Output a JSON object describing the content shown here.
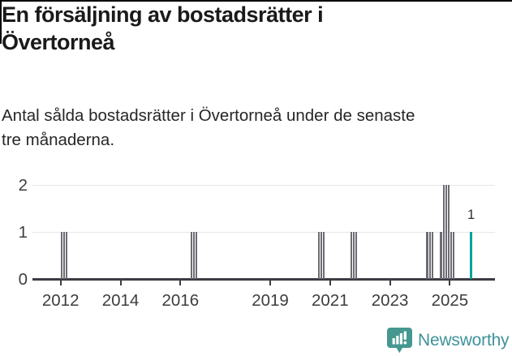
{
  "page": {
    "title": "En försäljning av bostadsrätter i Övertorneå",
    "title_lines": [
      "En försäljning av bostadsrätter i",
      "Övertorneå"
    ],
    "subtitle": "Antal sålda bostadsrätter i Övertorneå under de senaste tre månaderna.",
    "subtitle_lines": [
      "Antal sålda bostadsrätter i Övertorneå under de senaste",
      "tre månaderna."
    ]
  },
  "chart_data": {
    "type": "bar",
    "title": "En försäljning av bostadsrätter i Övertorneå",
    "subtitle": "Antal sålda bostadsrätter i Övertorneå under de senaste tre månaderna.",
    "xlabel": "",
    "ylabel": "",
    "ylim": [
      0,
      2
    ],
    "yticks": [
      0,
      1,
      2
    ],
    "xticks": [
      2012,
      2014,
      2016,
      2019,
      2021,
      2023,
      2025
    ],
    "grid": "horizontal",
    "legend_position": "none",
    "series_monthly": [
      {
        "year": 2012.03,
        "value": 1
      },
      {
        "year": 2012.113,
        "value": 1
      },
      {
        "year": 2012.197,
        "value": 1
      },
      {
        "year": 2016.37,
        "value": 1
      },
      {
        "year": 2016.453,
        "value": 1
      },
      {
        "year": 2016.537,
        "value": 1
      },
      {
        "year": 2020.62,
        "value": 1
      },
      {
        "year": 2020.703,
        "value": 1
      },
      {
        "year": 2020.787,
        "value": 1
      },
      {
        "year": 2021.71,
        "value": 1
      },
      {
        "year": 2021.793,
        "value": 1
      },
      {
        "year": 2021.877,
        "value": 1
      },
      {
        "year": 2024.25,
        "value": 1
      },
      {
        "year": 2024.333,
        "value": 1
      },
      {
        "year": 2024.417,
        "value": 1
      },
      {
        "year": 2024.71,
        "value": 1
      },
      {
        "year": 2024.793,
        "value": 2
      },
      {
        "year": 2024.877,
        "value": 2
      },
      {
        "year": 2024.96,
        "value": 2
      },
      {
        "year": 2025.043,
        "value": 1
      },
      {
        "year": 2025.127,
        "value": 1
      },
      {
        "year": 2025.71,
        "value": 1,
        "highlight": true,
        "label": "1"
      }
    ],
    "annotation": {
      "text": "1",
      "year": 2025.71,
      "value": 1
    },
    "colors": {
      "bar": "#6c6c74",
      "highlight": "#00a29b",
      "axis": "#3c3c44",
      "gridline": "#e7e7e7",
      "brand": "#3f929b",
      "badge": "#459790"
    }
  },
  "footer": {
    "brand": "Newsworthy"
  }
}
